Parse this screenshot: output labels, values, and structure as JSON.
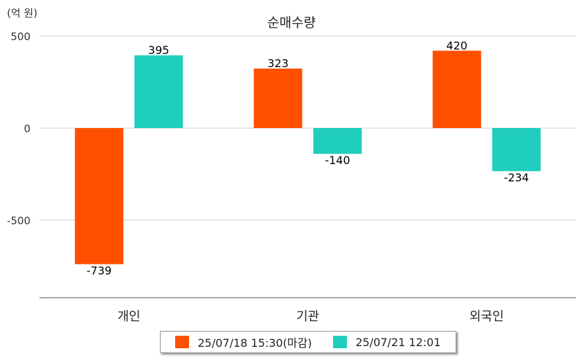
{
  "chart_data": {
    "type": "bar",
    "title": "순매수량",
    "unit_label": "(억 원)",
    "categories": [
      "개인",
      "기관",
      "외국인"
    ],
    "series": [
      {
        "name": "25/07/18 15:30(마감)",
        "color": "#FF5000",
        "values": [
          -739,
          323,
          420
        ]
      },
      {
        "name": "25/07/21 12:01",
        "color": "#1FCEBC",
        "values": [
          395,
          -140,
          -234
        ]
      }
    ],
    "y_ticks": [
      500,
      0,
      -500
    ],
    "ylim": [
      -920,
      500
    ],
    "grid": true,
    "legend_position": "bottom"
  }
}
